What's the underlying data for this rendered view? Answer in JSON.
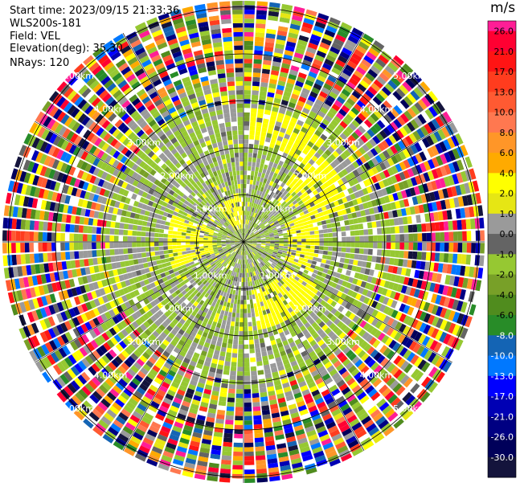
{
  "header": {
    "start_time": "Start time: 2023/09/15 21:33:36",
    "site": "WLS200s-181",
    "field": "Field: VEL",
    "elevation": "Elevation(deg): 35.30",
    "nrays": "NRays: 120"
  },
  "chart_data": {
    "type": "ppi_radial_velocity",
    "field": "VEL",
    "n_rays": 120,
    "elevation_deg": 35.3,
    "range_rings_km": [
      1.0,
      2.0,
      3.0,
      4.0,
      5.0
    ],
    "ring_labels": [
      "1.00km",
      "2.00km",
      "3.00km",
      "4.00km",
      "5.00km"
    ],
    "colorbar": {
      "unit": "m/s",
      "ticks": [
        "26.0",
        "21.0",
        "17.0",
        "13.0",
        "10.0",
        "8.0",
        "6.0",
        "4.0",
        "2.0",
        "1.0",
        "0.0",
        "-1.0",
        "-2.0",
        "-4.0",
        "-6.0",
        "-8.0",
        "-10.0",
        "-13.0",
        "-17.0",
        "-21.0",
        "-26.0",
        "-30.0"
      ],
      "colors": [
        "#ff1e96",
        "#ff0032",
        "#ff1414",
        "#ff3c1e",
        "#ff5a32",
        "#ff7850",
        "#ff9628",
        "#ffaa00",
        "#ffff00",
        "#e6e614",
        "#9a9a9a",
        "#646464",
        "#96c832",
        "#78a028",
        "#508c1e",
        "#288c28",
        "#1464b4",
        "#0078ff",
        "#0000ff",
        "#0000b4",
        "#000082",
        "#00005a",
        "#14143c"
      ]
    },
    "observations": {
      "near_range": "mostly yellow-green (-1 to -2 m/s) with gray (0 m/s) and yellow (+2 m/s) patches",
      "far_range": "noisy mixed colors beyond ~3 km"
    }
  }
}
